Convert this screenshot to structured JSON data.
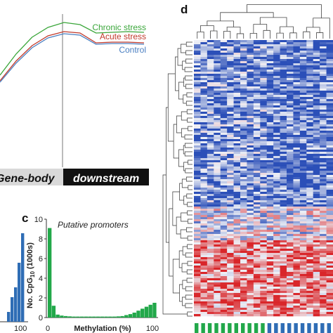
{
  "panels": {
    "d_label": "d",
    "c_label": "c"
  },
  "profile": {
    "legend": [
      "Chronic stress",
      "Acute stress",
      "Control"
    ],
    "colors": {
      "chronic": "#3aa63a",
      "acute": "#c0392b",
      "control": "#4a7fc1"
    },
    "region_genebody": "Gene-body",
    "region_downstream": "downstream"
  },
  "chart_data": [
    {
      "type": "line",
      "panel": "b",
      "series": [
        {
          "name": "Chronic stress",
          "values": [
            0.18,
            0.48,
            0.72,
            0.86,
            0.93,
            0.9,
            0.78,
            0.79,
            0.8,
            0.79
          ]
        },
        {
          "name": "Acute stress",
          "values": [
            0.1,
            0.38,
            0.6,
            0.74,
            0.8,
            0.78,
            0.64,
            0.65,
            0.65,
            0.64
          ]
        },
        {
          "name": "Control",
          "values": [
            0.08,
            0.35,
            0.57,
            0.71,
            0.77,
            0.75,
            0.62,
            0.63,
            0.63,
            0.62
          ]
        }
      ],
      "region_boundary_index": 5.5
    },
    {
      "type": "bar",
      "panel": "c",
      "title": "Putative promoters",
      "xlabel": "Methylation (%)",
      "ylabel": "No. CpG",
      "ylabel_sub": "10",
      "ylabel_suffix": " (1000s)",
      "xticks": [
        "0",
        "100"
      ],
      "yticks": [
        "0",
        "2",
        "4",
        "6",
        "8",
        "10"
      ],
      "ylim": [
        0,
        10
      ],
      "bar_color": "#22a84a",
      "values": [
        9.1,
        1.2,
        0.3,
        0.2,
        0.15,
        0.12,
        0.1,
        0.1,
        0.1,
        0.1,
        0.1,
        0.1,
        0.1,
        0.1,
        0.1,
        0.1,
        0.1,
        0.12,
        0.15,
        0.25,
        0.35,
        0.5,
        0.7,
        0.9,
        1.1,
        1.3,
        1.5
      ]
    },
    {
      "type": "bar",
      "panel": "a",
      "xticks": [
        "100"
      ],
      "bar_color": "#2f6db5",
      "values": [
        1.0,
        2.5,
        3.5,
        6.0,
        9.0
      ]
    },
    {
      "type": "heatmap",
      "panel": "d",
      "colors": {
        "low": "#2b4fb8",
        "mid": "#eef0f6",
        "high": "#d9262a"
      },
      "group_colors": {
        "green": "#22a84a",
        "blue": "#2f6db5"
      },
      "group_bar": [
        "green",
        "green",
        "green",
        "green",
        "green",
        "green",
        "green",
        "green",
        "green",
        "green",
        "green",
        "blue",
        "blue",
        "blue",
        "blue",
        "blue",
        "blue",
        "blue",
        "blue",
        "blue",
        "blue"
      ]
    }
  ]
}
